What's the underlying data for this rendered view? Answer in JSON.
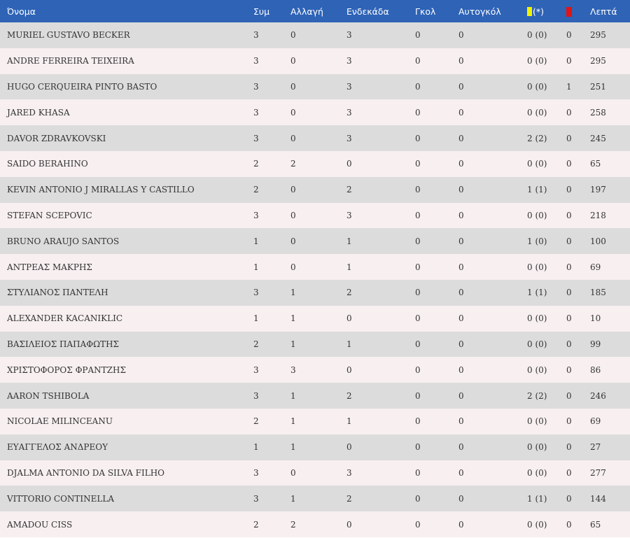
{
  "colors": {
    "header_bg": "#2e63b6",
    "row_odd": "#dcdcdc",
    "row_even": "#f7eff0",
    "yellow_card": "#f2f200",
    "red_card": "#e01414"
  },
  "header": {
    "name": "Όνομα",
    "apps": "Συμ",
    "subs": "Αλλαγή",
    "starts": "Ενδεκάδα",
    "goals": "Γκολ",
    "own_goals": "Αυτογκόλ",
    "yellow_icon": "yellow-card-icon",
    "yellow_suffix": "(*)",
    "red_icon": "red-card-icon",
    "minutes": "Λεπτά"
  },
  "rows": [
    {
      "name": "MURIEL GUSTAVO BECKER",
      "apps": "3",
      "subs": "0",
      "starts": "3",
      "goals": "0",
      "own_goals": "0",
      "yellow": "0 (0)",
      "red": "0",
      "minutes": "295"
    },
    {
      "name": "ANDRE FERREIRA TEIXEIRA",
      "apps": "3",
      "subs": "0",
      "starts": "3",
      "goals": "0",
      "own_goals": "0",
      "yellow": "0 (0)",
      "red": "0",
      "minutes": "295"
    },
    {
      "name": "HUGO CERQUEIRA PINTO BASTO",
      "apps": "3",
      "subs": "0",
      "starts": "3",
      "goals": "0",
      "own_goals": "0",
      "yellow": "0 (0)",
      "red": "1",
      "minutes": "251"
    },
    {
      "name": "JARED KHASA",
      "apps": "3",
      "subs": "0",
      "starts": "3",
      "goals": "0",
      "own_goals": "0",
      "yellow": "0 (0)",
      "red": "0",
      "minutes": "258"
    },
    {
      "name": "DAVOR ZDRAVKOVSKI",
      "apps": "3",
      "subs": "0",
      "starts": "3",
      "goals": "0",
      "own_goals": "0",
      "yellow": "2 (2)",
      "red": "0",
      "minutes": "245"
    },
    {
      "name": "SAIDO BERAHINO",
      "apps": "2",
      "subs": "2",
      "starts": "0",
      "goals": "0",
      "own_goals": "0",
      "yellow": "0 (0)",
      "red": "0",
      "minutes": "65"
    },
    {
      "name": "KEVIN ANTONIO J MIRALLAS Y CASTILLO",
      "apps": "2",
      "subs": "0",
      "starts": "2",
      "goals": "0",
      "own_goals": "0",
      "yellow": "1 (1)",
      "red": "0",
      "minutes": "197"
    },
    {
      "name": "STEFAN SCEPOVIC",
      "apps": "3",
      "subs": "0",
      "starts": "3",
      "goals": "0",
      "own_goals": "0",
      "yellow": "0 (0)",
      "red": "0",
      "minutes": "218"
    },
    {
      "name": "BRUNO ARAUJO SANTOS",
      "apps": "1",
      "subs": "0",
      "starts": "1",
      "goals": "0",
      "own_goals": "0",
      "yellow": "1 (0)",
      "red": "0",
      "minutes": "100"
    },
    {
      "name": "ΑΝΤΡΕΑΣ ΜΑΚΡΗΣ",
      "apps": "1",
      "subs": "0",
      "starts": "1",
      "goals": "0",
      "own_goals": "0",
      "yellow": "0 (0)",
      "red": "0",
      "minutes": "69"
    },
    {
      "name": "ΣΤΥΛΙΑΝΟΣ ΠΑΝΤΕΛΗ",
      "apps": "3",
      "subs": "1",
      "starts": "2",
      "goals": "0",
      "own_goals": "0",
      "yellow": "1 (1)",
      "red": "0",
      "minutes": "185"
    },
    {
      "name": "ALEXANDER KACANIKLIC",
      "apps": "1",
      "subs": "1",
      "starts": "0",
      "goals": "0",
      "own_goals": "0",
      "yellow": "0 (0)",
      "red": "0",
      "minutes": "10"
    },
    {
      "name": "ΒΑΣΙΛΕΙΟΣ ΠΑΠΑΦΩΤΗΣ",
      "apps": "2",
      "subs": "1",
      "starts": "1",
      "goals": "0",
      "own_goals": "0",
      "yellow": "0 (0)",
      "red": "0",
      "minutes": "99"
    },
    {
      "name": "ΧΡΙΣΤΟΦΟΡΟΣ ΦΡΑΝΤΖΗΣ",
      "apps": "3",
      "subs": "3",
      "starts": "0",
      "goals": "0",
      "own_goals": "0",
      "yellow": "0 (0)",
      "red": "0",
      "minutes": "86"
    },
    {
      "name": "AARON TSHIBOLA",
      "apps": "3",
      "subs": "1",
      "starts": "2",
      "goals": "0",
      "own_goals": "0",
      "yellow": "2 (2)",
      "red": "0",
      "minutes": "246"
    },
    {
      "name": "NICOLAE MILINCEANU",
      "apps": "2",
      "subs": "1",
      "starts": "1",
      "goals": "0",
      "own_goals": "0",
      "yellow": "0 (0)",
      "red": "0",
      "minutes": "69"
    },
    {
      "name": "ΕΥΑΓΓΕΛΟΣ ΑΝΔΡΕΟΥ",
      "apps": "1",
      "subs": "1",
      "starts": "0",
      "goals": "0",
      "own_goals": "0",
      "yellow": "0 (0)",
      "red": "0",
      "minutes": "27"
    },
    {
      "name": "DJALMA ANTONIO DA SILVA FILHO",
      "apps": "3",
      "subs": "0",
      "starts": "3",
      "goals": "0",
      "own_goals": "0",
      "yellow": "0 (0)",
      "red": "0",
      "minutes": "277"
    },
    {
      "name": "VITTORIO CONTINELLA",
      "apps": "3",
      "subs": "1",
      "starts": "2",
      "goals": "0",
      "own_goals": "0",
      "yellow": "1 (1)",
      "red": "0",
      "minutes": "144"
    },
    {
      "name": "AMADOU CISS",
      "apps": "2",
      "subs": "2",
      "starts": "0",
      "goals": "0",
      "own_goals": "0",
      "yellow": "0 (0)",
      "red": "0",
      "minutes": "65"
    }
  ]
}
